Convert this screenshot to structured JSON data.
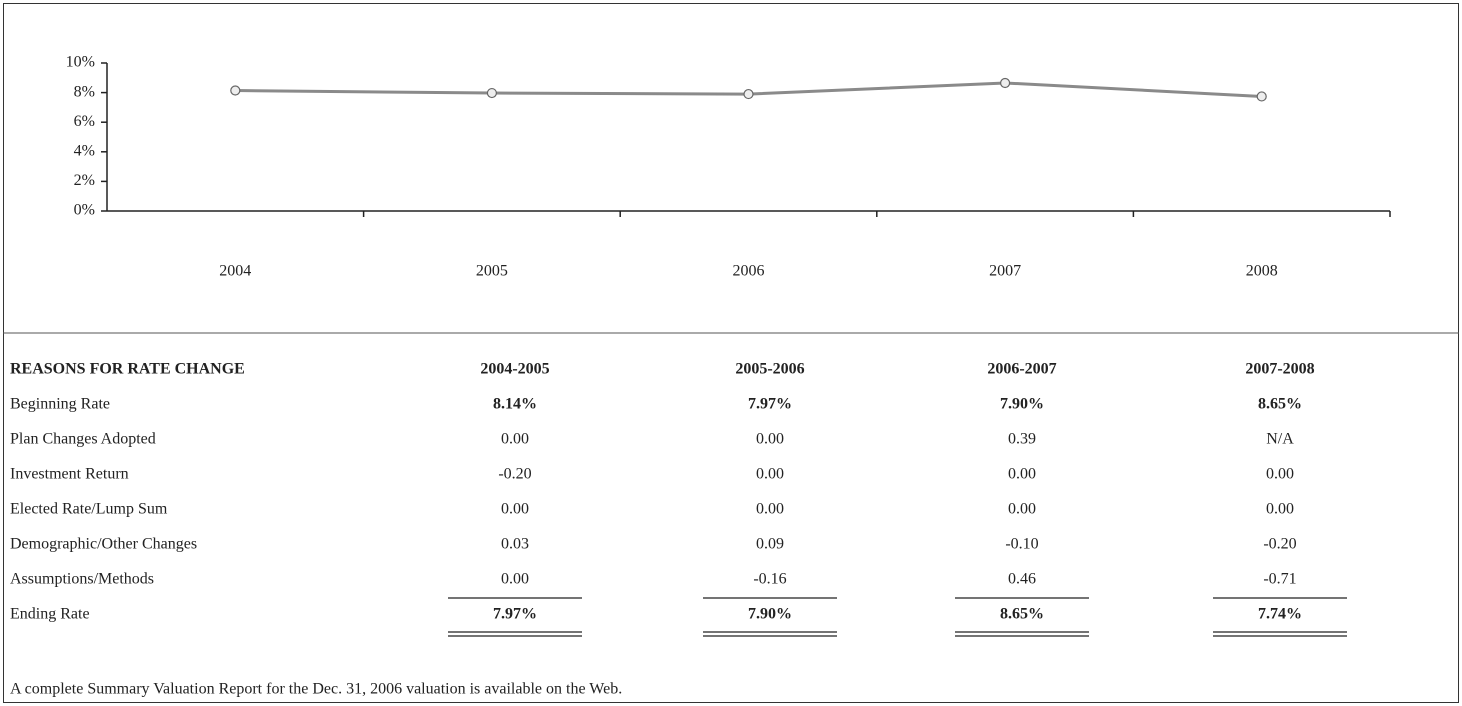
{
  "chart_data": {
    "type": "line",
    "categories": [
      "2004",
      "2005",
      "2006",
      "2007",
      "2008"
    ],
    "values": [
      8.14,
      7.97,
      7.9,
      8.65,
      7.74
    ],
    "color": "#8a8a8a",
    "ylim": [
      0,
      10
    ],
    "yticks": [
      {
        "value": 0,
        "label": "0%"
      },
      {
        "value": 2,
        "label": "2%"
      },
      {
        "value": 4,
        "label": "4%"
      },
      {
        "value": 6,
        "label": "6%"
      },
      {
        "value": 8,
        "label": "8%"
      },
      {
        "value": 10,
        "label": "10%"
      }
    ],
    "grid": false
  },
  "table": {
    "header": [
      "REASONS FOR RATE CHANGE",
      "2004-2005",
      "2005-2006",
      "2006-2007",
      "2007-2008"
    ],
    "rows": [
      [
        "Beginning Rate",
        "8.14%",
        "7.97%",
        "7.90%",
        "8.65%"
      ],
      [
        "Plan Changes Adopted",
        "0.00",
        "0.00",
        "0.39",
        "N/A"
      ],
      [
        "Investment Return",
        "-0.20",
        "0.00",
        "0.00",
        "0.00"
      ],
      [
        "Elected Rate/Lump Sum",
        "0.00",
        "0.00",
        "0.00",
        "0.00"
      ],
      [
        "Demographic/Other Changes",
        "0.03",
        "0.09",
        "-0.10",
        "-0.20"
      ],
      [
        "Assumptions/Methods",
        "0.00",
        "-0.16",
        "0.46",
        "-0.71"
      ],
      [
        "Ending Rate",
        "7.97%",
        "7.90%",
        "8.65%",
        "7.74%"
      ]
    ]
  },
  "footnote": "A complete Summary Valuation Report for the Dec. 31, 2006 valuation is available on the Web."
}
